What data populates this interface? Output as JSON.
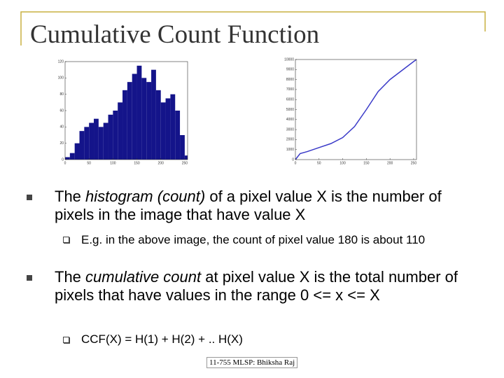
{
  "title": "Cumulative Count Function",
  "figures": [
    {
      "type": "histogram",
      "color": "#14148a",
      "bins": [
        0,
        10,
        20,
        30,
        40,
        50,
        60,
        70,
        80,
        90,
        100,
        110,
        120,
        130,
        140,
        150,
        160,
        170,
        180,
        190,
        200,
        210,
        220,
        230,
        240,
        250,
        256
      ],
      "counts": [
        3,
        8,
        20,
        35,
        40,
        45,
        50,
        40,
        45,
        55,
        60,
        70,
        85,
        95,
        105,
        115,
        100,
        95,
        110,
        85,
        70,
        75,
        80,
        60,
        30,
        5
      ],
      "xlim": [
        0,
        256
      ],
      "ylim": [
        0,
        120
      ],
      "xticks": [
        0,
        50,
        100,
        150,
        200,
        250
      ],
      "yticks": [
        0,
        20,
        40,
        60,
        80,
        100,
        120
      ]
    },
    {
      "type": "line",
      "color": "#3a3ac8",
      "x": [
        0,
        10,
        25,
        50,
        75,
        100,
        125,
        150,
        175,
        200,
        225,
        250,
        256
      ],
      "y": [
        0,
        600,
        800,
        1200,
        1600,
        2200,
        3300,
        5000,
        6800,
        8000,
        8900,
        9800,
        10000
      ],
      "xlim": [
        0,
        256
      ],
      "ylim": [
        0,
        10000
      ],
      "xticks": [
        0,
        50,
        100,
        150,
        200,
        250
      ],
      "yticks": [
        0,
        1000,
        2000,
        3000,
        4000,
        5000,
        6000,
        7000,
        8000,
        9000,
        10000
      ]
    }
  ],
  "bullets": [
    {
      "runs": [
        "The ",
        "histogram (count)",
        " of a pixel value X is the number of pixels in the image that have value X"
      ],
      "sub": "E.g. in the above image, the count of pixel value 180 is about 110"
    },
    {
      "runs": [
        "The ",
        "cumulative count",
        " at pixel value X is the total number of pixels that have values in the range 0 <= x <= X"
      ],
      "sub": "CCF(X) =  H(1) + H(2) + .. H(X)"
    }
  ],
  "footer": "11-755 MLSP: Bhiksha Raj"
}
